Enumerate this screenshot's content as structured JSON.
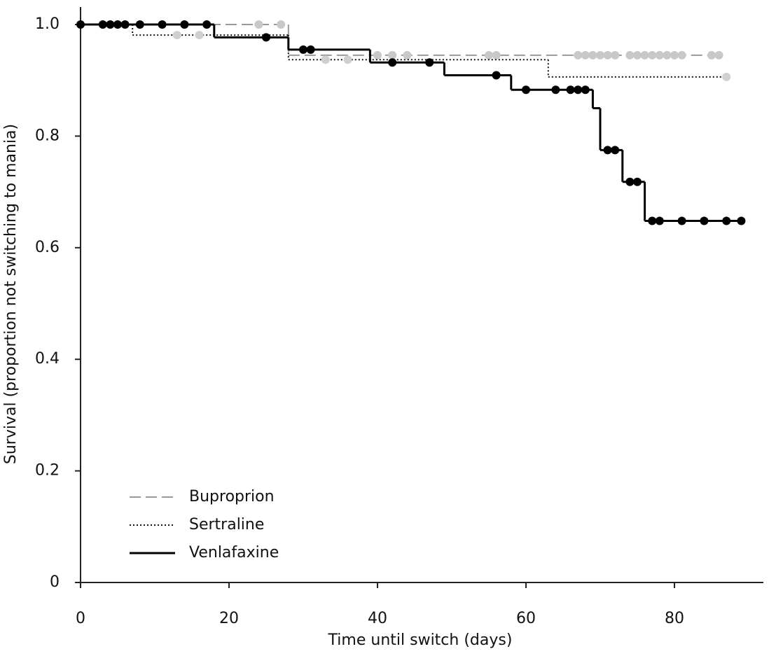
{
  "chart_data": {
    "type": "km",
    "xlabel": "Time until switch (days)",
    "ylabel": "Survival (proportion not switching to mania)",
    "xlim": [
      0,
      92
    ],
    "ylim": [
      0,
      1.0
    ],
    "xticks": [
      0,
      20,
      40,
      60,
      80
    ],
    "yticks": [
      0,
      0.2,
      0.4,
      0.6,
      0.8,
      {
        "value": 1,
        "label": "1.0"
      }
    ],
    "legend": "lower left",
    "series": [
      {
        "name": "Buproprion",
        "color": "#999999",
        "dash": "dashed",
        "marker_color": "#c8c8c8",
        "x": [
          0,
          28,
          86
        ],
        "values": [
          1,
          0.945,
          0.945
        ],
        "censor_x": [
          24,
          27,
          40,
          42,
          44,
          55,
          56,
          67,
          68,
          69,
          70,
          71,
          72,
          74,
          75,
          76,
          77,
          78,
          79,
          80,
          81,
          85,
          86
        ],
        "censor_values": [
          1,
          1,
          0.945,
          0.945,
          0.945,
          0.945,
          0.945,
          0.945,
          0.945,
          0.945,
          0.945,
          0.945,
          0.945,
          0.945,
          0.945,
          0.945,
          0.945,
          0.945,
          0.945,
          0.945,
          0.945,
          0.945,
          0.945
        ]
      },
      {
        "name": "Sertraline",
        "color": "#111111",
        "dash": "dotted",
        "marker_color": "#d0d0d0",
        "x": [
          0,
          7,
          28,
          63,
          87
        ],
        "values": [
          1,
          0.981,
          0.937,
          0.906,
          0.906
        ],
        "censor_x": [
          13,
          16,
          33,
          36,
          87
        ],
        "censor_values": [
          0.981,
          0.981,
          0.937,
          0.937,
          0.906
        ]
      },
      {
        "name": "Venlafaxine",
        "color": "#000000",
        "dash": "solid",
        "marker_color": "#000000",
        "x": [
          0,
          18,
          28,
          39,
          49,
          58,
          69,
          70,
          73,
          76,
          89
        ],
        "values": [
          1,
          0.977,
          0.955,
          0.932,
          0.909,
          0.883,
          0.85,
          0.775,
          0.718,
          0.648,
          0.648
        ],
        "censor_x": [
          0,
          3,
          4,
          5,
          6,
          8,
          11,
          14,
          17,
          25,
          30,
          31,
          42,
          47,
          56,
          60,
          64,
          66,
          67,
          68,
          71,
          72,
          74,
          75,
          77,
          78,
          81,
          84,
          87,
          89
        ],
        "censor_values": [
          1,
          1,
          1,
          1,
          1,
          1,
          1,
          1,
          1,
          0.977,
          0.955,
          0.955,
          0.932,
          0.932,
          0.909,
          0.883,
          0.883,
          0.883,
          0.883,
          0.883,
          0.775,
          0.775,
          0.718,
          0.718,
          0.648,
          0.648,
          0.648,
          0.648,
          0.648,
          0.648
        ]
      }
    ]
  }
}
